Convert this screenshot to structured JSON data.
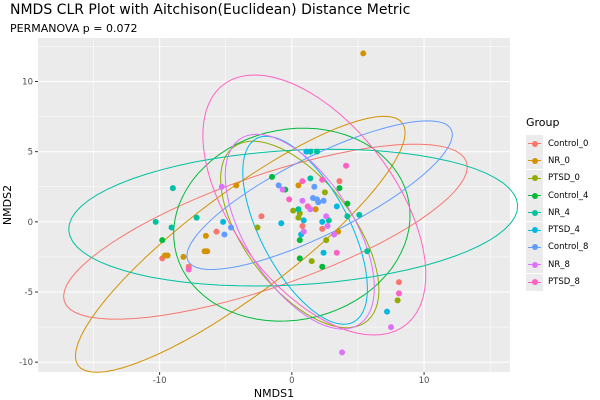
{
  "chart_data": {
    "type": "scatter",
    "title": "NMDS CLR Plot with Aitchison(Euclidean) Distance Metric",
    "subtitle": "PERMANOVA p = 0.072",
    "xlabel": "NMDS1",
    "ylabel": "NMDS2",
    "xlim": [
      -19.2,
      16.5
    ],
    "ylim": [
      -10.7,
      13.1
    ],
    "x_ticks": [
      -10,
      0,
      10
    ],
    "y_ticks": [
      -10,
      -5,
      0,
      5,
      10
    ],
    "x_tick_labels": [
      "-10",
      "0",
      "10"
    ],
    "y_tick_labels": [
      "-10",
      "-5",
      "0",
      "5",
      "10"
    ],
    "grid": true,
    "legend": {
      "title": "Group",
      "position": "right"
    },
    "series": [
      {
        "name": "Control_0",
        "color": "#F8766D",
        "points": [
          [
            -9.8,
            -2.6
          ],
          [
            -7.8,
            -3.2
          ],
          [
            -5.7,
            -0.7
          ],
          [
            -2.3,
            0.4
          ],
          [
            3.6,
            2.9
          ],
          [
            0.8,
            -0.3
          ],
          [
            2.3,
            -0.5
          ],
          [
            8.1,
            -4.3
          ]
        ],
        "ellipse": {
          "cx": -2.0,
          "cy": -0.7,
          "a": 16,
          "b": 4.0,
          "angle": 18
        }
      },
      {
        "name": "NR_0",
        "color": "#D39200",
        "points": [
          [
            5.4,
            12.0
          ],
          [
            -9.6,
            -2.4
          ],
          [
            -9.4,
            -2.4
          ],
          [
            -8.2,
            -2.5
          ],
          [
            -6.6,
            -2.1
          ],
          [
            -6.4,
            -2.1
          ],
          [
            -6.5,
            -1.0
          ],
          [
            -4.2,
            2.6
          ],
          [
            0.5,
            2.6
          ],
          [
            1.8,
            0.9
          ],
          [
            3.5,
            -0.7
          ]
        ],
        "ellipse": {
          "cx": -3.9,
          "cy": -1.6,
          "a": 15,
          "b": 3.7,
          "angle": 35
        }
      },
      {
        "name": "PTSD_0",
        "color": "#93AA00",
        "points": [
          [
            -2.6,
            -0.4
          ],
          [
            2.5,
            2.1
          ],
          [
            0.1,
            0.8
          ],
          [
            0.6,
            0.6
          ],
          [
            0.5,
            0.3
          ],
          [
            2.6,
            -1.3
          ],
          [
            1.5,
            -2.8
          ],
          [
            8.0,
            -5.6
          ]
        ],
        "ellipse": {
          "cx": 0.6,
          "cy": -0.9,
          "a": 8,
          "b": 4,
          "angle": -50
        }
      },
      {
        "name": "Control_4",
        "color": "#00BA38",
        "points": [
          [
            -9.8,
            -1.3
          ],
          [
            -1.5,
            3.2
          ],
          [
            -0.5,
            2.3
          ],
          [
            3.6,
            2.4
          ],
          [
            4.2,
            1.3
          ],
          [
            0.6,
            -1.3
          ],
          [
            0.6,
            -2.6
          ],
          [
            2.3,
            -3.2
          ]
        ],
        "ellipse": {
          "cx": 0.0,
          "cy": -0.2,
          "a": 9,
          "b": 6.8,
          "angle": 10
        }
      },
      {
        "name": "NR_4",
        "color": "#00C19F",
        "points": [
          [
            -9.0,
            2.4
          ],
          [
            -10.3,
            0
          ],
          [
            -9.1,
            -0.4
          ],
          [
            -7.2,
            0.3
          ],
          [
            1.4,
            5.0
          ],
          [
            1.9,
            5.0
          ],
          [
            1.4,
            3.1
          ],
          [
            0.5,
            0.9
          ],
          [
            2.8,
            0.1
          ],
          [
            4.2,
            0.4
          ],
          [
            5.1,
            0.5
          ],
          [
            5.7,
            -2.1
          ]
        ],
        "ellipse": {
          "cx": 0.1,
          "cy": 0.3,
          "a": 17,
          "b": 4.8,
          "angle": 3
        }
      },
      {
        "name": "PTSD_4",
        "color": "#00B9E3",
        "points": [
          [
            -5.2,
            0
          ],
          [
            -0.8,
            -0.1
          ],
          [
            1.1,
            5.0
          ],
          [
            3.4,
            1.1
          ],
          [
            0.7,
            -0.9
          ],
          [
            2.4,
            -2.2
          ],
          [
            7.2,
            -6.4
          ],
          [
            0.9,
            0.1
          ],
          [
            2.3,
            0
          ]
        ],
        "ellipse": {
          "cx": 1.0,
          "cy": -0.6,
          "a": 7.5,
          "b": 3.3,
          "angle": -60
        }
      },
      {
        "name": "Control_8",
        "color": "#619CFF",
        "points": [
          [
            -4.6,
            -0.4
          ],
          [
            -5.1,
            -0.9
          ],
          [
            -1.0,
            2.6
          ],
          [
            1.7,
            2.5
          ],
          [
            1.6,
            1.7
          ],
          [
            1.9,
            1.6
          ],
          [
            2.0,
            1.4
          ],
          [
            2.4,
            1.5
          ]
        ],
        "ellipse": {
          "cx": 2.1,
          "cy": 1.9,
          "a": 11,
          "b": 2.8,
          "angle": 25
        }
      },
      {
        "name": "NR_8",
        "color": "#DB72FB",
        "points": [
          [
            -5.3,
            2.5
          ],
          [
            -0.7,
            2.3
          ],
          [
            0.8,
            1.5
          ],
          [
            1.4,
            0.9
          ],
          [
            2.6,
            0.4
          ],
          [
            2.7,
            -0.3
          ],
          [
            0.9,
            -0.7
          ],
          [
            3.2,
            -0.9
          ],
          [
            7.5,
            -7.5
          ],
          [
            3.8,
            -9.3
          ]
        ],
        "ellipse": {
          "cx": 0.6,
          "cy": -0.7,
          "a": 8,
          "b": 4,
          "angle": -55
        }
      },
      {
        "name": "PTSD_8",
        "color": "#FF61C3",
        "points": [
          [
            -7.8,
            -3.4
          ],
          [
            0.8,
            2.9
          ],
          [
            4.1,
            4.0
          ],
          [
            -0.2,
            1.6
          ],
          [
            1.2,
            1.1
          ],
          [
            2.3,
            3.0
          ],
          [
            8.1,
            -5.1
          ],
          [
            3.4,
            -2.2
          ]
        ],
        "ellipse": {
          "cx": 1.7,
          "cy": 1.2,
          "a": 11,
          "b": 6,
          "angle": -50
        }
      }
    ]
  }
}
